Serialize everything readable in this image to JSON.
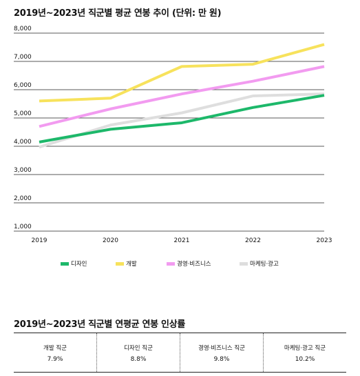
{
  "chart_data": {
    "type": "line",
    "title": "2019년~2023년 직군별 평균 연봉 추이 (단위: 만 원)",
    "x": [
      "2019",
      "2020",
      "2021",
      "2022",
      "2023"
    ],
    "yticks": [
      "1,000",
      "2,000",
      "3,000",
      "4,000",
      "5,000",
      "6,000",
      "7,000",
      "8,000"
    ],
    "ylim": [
      1000,
      8000
    ],
    "grid": "horizontal",
    "legend_position": "bottom",
    "series": [
      {
        "name": "디자인",
        "color": "#1db86a",
        "values": [
          4150,
          4600,
          4830,
          5370,
          5800
        ]
      },
      {
        "name": "개발",
        "color": "#f7e25c",
        "values": [
          5600,
          5700,
          6820,
          6900,
          7600
        ]
      },
      {
        "name": "경영·비즈니스",
        "color": "#f29bf0",
        "values": [
          4700,
          5320,
          5850,
          6300,
          6820
        ]
      },
      {
        "name": "마케팅·광고",
        "color": "#dedede",
        "values": [
          3970,
          4750,
          5180,
          5780,
          5850
        ]
      }
    ]
  },
  "table": {
    "title": "2019년~2023년 직군별 연평균 연봉 인상률",
    "rows": [
      {
        "name": "개발 직군",
        "value": "7.9%"
      },
      {
        "name": "디자인 직군",
        "value": "8.8%"
      },
      {
        "name": "경영·비즈니스 직군",
        "value": "9.8%"
      },
      {
        "name": "마케팅·광고 직군",
        "value": "10.2%"
      }
    ]
  }
}
